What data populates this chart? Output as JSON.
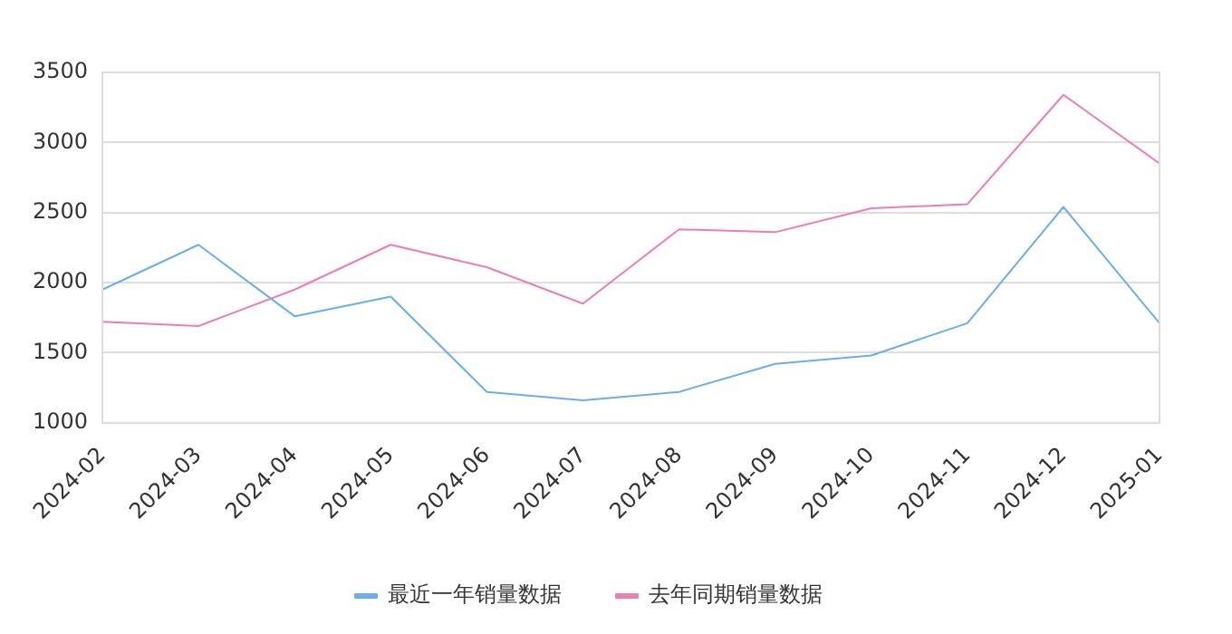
{
  "chart_data": {
    "type": "line",
    "categories": [
      "2024-02",
      "2024-03",
      "2024-04",
      "2024-05",
      "2024-06",
      "2024-07",
      "2024-08",
      "2024-09",
      "2024-10",
      "2024-11",
      "2024-12",
      "2025-01"
    ],
    "series": [
      {
        "name": "最近一年销量数据",
        "color": "#6aaef0",
        "values": [
          1950,
          2270,
          1760,
          1900,
          1220,
          1160,
          1220,
          1420,
          1480,
          1710,
          2540,
          1710
        ]
      },
      {
        "name": "去年同期销量数据",
        "color": "#f07cb4",
        "values": [
          1720,
          1690,
          1950,
          2270,
          2110,
          1850,
          2380,
          2360,
          2530,
          2560,
          3340,
          2850
        ]
      }
    ],
    "ylim": [
      1000,
      3500
    ],
    "yticks": [
      1000,
      1500,
      2000,
      2500,
      3000,
      3500
    ],
    "grid": "y",
    "legend": "bottom",
    "marker": "none",
    "line_style": "solid"
  }
}
